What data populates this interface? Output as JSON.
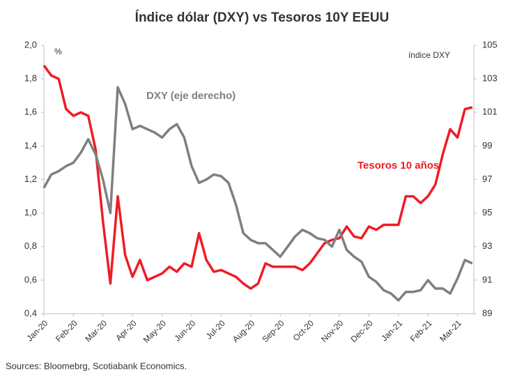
{
  "chart_data": {
    "type": "line",
    "title": "Índice dólar (DXY) vs Tesoros 10Y EEUU",
    "y_label": "%",
    "y2_label": "índice DXY",
    "source": "Sources: Bloomebrg, Scotiabank Economics.",
    "categories": [
      "Jan-20",
      null,
      null,
      null,
      "Feb-20",
      null,
      null,
      null,
      "Mar-20",
      null,
      null,
      null,
      "Apr-20",
      null,
      null,
      null,
      "May-20",
      null,
      null,
      null,
      "Jun-20",
      null,
      null,
      null,
      "Jul-20",
      null,
      null,
      null,
      "Aug-20",
      null,
      null,
      null,
      "Sep-20",
      null,
      null,
      null,
      "Oct-20",
      null,
      null,
      null,
      "Nov-20",
      null,
      null,
      null,
      "Dec-20",
      null,
      null,
      null,
      "Jan-21",
      null,
      null,
      null,
      "Feb-21",
      null,
      null,
      null,
      "Mar-21",
      null,
      null
    ],
    "series": [
      {
        "name": "Tesoros 10 años",
        "color": "#ee1c25",
        "axis": "y",
        "values": [
          1.88,
          1.82,
          1.8,
          1.62,
          1.58,
          1.6,
          1.58,
          1.38,
          0.95,
          0.58,
          1.1,
          0.75,
          0.62,
          0.72,
          0.6,
          0.62,
          0.64,
          0.68,
          0.65,
          0.7,
          0.68,
          0.88,
          0.72,
          0.65,
          0.66,
          0.64,
          0.62,
          0.58,
          0.55,
          0.58,
          0.7,
          0.68,
          0.68,
          0.68,
          0.68,
          0.66,
          0.7,
          0.76,
          0.82,
          0.84,
          0.85,
          0.92,
          0.86,
          0.85,
          0.92,
          0.9,
          0.93,
          0.93,
          0.93,
          1.1,
          1.1,
          1.06,
          1.1,
          1.17,
          1.35,
          1.5,
          1.45,
          1.62,
          1.63
        ]
      },
      {
        "name": "DXY (eje derecho)",
        "color": "#7f7f7f",
        "axis": "y2",
        "values": [
          96.5,
          97.3,
          97.5,
          97.8,
          98.0,
          98.6,
          99.4,
          98.5,
          97.0,
          95.0,
          102.5,
          101.5,
          100.0,
          100.2,
          100.0,
          99.8,
          99.5,
          100.0,
          100.3,
          99.5,
          97.8,
          96.8,
          97.0,
          97.3,
          97.2,
          96.8,
          95.5,
          93.8,
          93.4,
          93.2,
          93.2,
          92.8,
          92.4,
          93.0,
          93.6,
          94.0,
          93.8,
          93.5,
          93.4,
          93.0,
          94.0,
          92.8,
          92.4,
          92.1,
          91.2,
          90.9,
          90.4,
          90.2,
          89.8,
          90.3,
          90.3,
          90.4,
          91.0,
          90.5,
          90.5,
          90.2,
          91.1,
          92.2,
          92.0
        ]
      }
    ],
    "ylim": [
      0.4,
      2.0
    ],
    "yticks": [
      {
        "value": 0.4,
        "label": "0,4"
      },
      {
        "value": 0.6,
        "label": "0,6"
      },
      {
        "value": 0.8,
        "label": "0,8"
      },
      {
        "value": 1.0,
        "label": "1,0"
      },
      {
        "value": 1.2,
        "label": "1,2"
      },
      {
        "value": 1.4,
        "label": "1,4"
      },
      {
        "value": 1.6,
        "label": "1,6"
      },
      {
        "value": 1.8,
        "label": "1,8"
      },
      {
        "value": 2.0,
        "label": "2,0"
      }
    ],
    "y2lim": [
      89,
      105
    ],
    "y2ticks": [
      89,
      91,
      93,
      95,
      97,
      99,
      101,
      103,
      105
    ],
    "grid": false
  }
}
